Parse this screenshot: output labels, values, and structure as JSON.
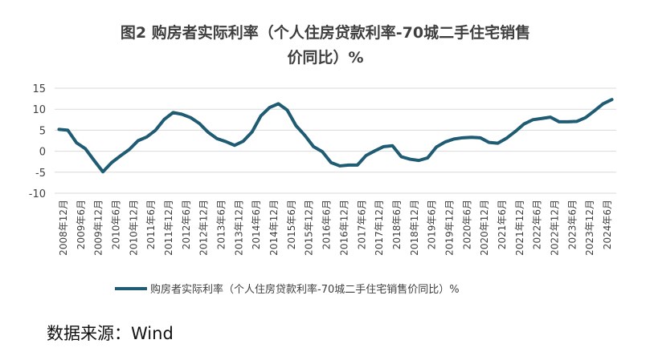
{
  "chart_data": {
    "type": "line",
    "title": "图2  购房者实际利率（个人住房贷款利率-70城二手住宅销售价同比）%",
    "title_lines": [
      "图2  购房者实际利率（个人住房贷款利率-70城二手住宅销售",
      "价同比）%"
    ],
    "xlabel": "",
    "ylabel": "",
    "ylim": [
      -10,
      15
    ],
    "yticks": [
      -10,
      -5,
      0,
      5,
      10,
      15
    ],
    "grid": true,
    "legend": "bottom",
    "line_color": "#1f5b72",
    "x_tick_labels": [
      "2008年12月",
      "2009年6月",
      "2009年12月",
      "2010年6月",
      "2010年12月",
      "2011年6月",
      "2011年12月",
      "2012年6月",
      "2012年12月",
      "2013年6月",
      "2013年12月",
      "2014年6月",
      "2014年12月",
      "2015年6月",
      "2015年12月",
      "2016年6月",
      "2016年12月",
      "2017年6月",
      "2017年12月",
      "2018年6月",
      "2018年12月",
      "2019年6月",
      "2019年12月",
      "2020年6月",
      "2020年12月",
      "2021年6月",
      "2021年12月",
      "2022年6月",
      "2022年12月",
      "2023年6月",
      "2023年12月",
      "2024年6月"
    ],
    "series": [
      {
        "name": "购房者实际利率（个人住房贷款利率-70城二手住宅销售价同比）%",
        "values": [
          5.2,
          5.0,
          2.0,
          0.6,
          -2.2,
          -4.9,
          -2.7,
          -1.1,
          0.4,
          2.5,
          3.4,
          5.0,
          7.6,
          9.2,
          8.8,
          8.0,
          6.6,
          4.5,
          3.0,
          2.3,
          1.4,
          2.4,
          4.6,
          8.4,
          10.4,
          11.3,
          9.8,
          6.1,
          3.8,
          1.1,
          -0.1,
          -2.7,
          -3.5,
          -3.3,
          -3.3,
          -1.0,
          0.1,
          1.1,
          1.3,
          -1.3,
          -1.9,
          -2.2,
          -1.6,
          1.0,
          2.2,
          2.9,
          3.2,
          3.3,
          3.2,
          2.1,
          1.9,
          3.1,
          4.7,
          6.5,
          7.5,
          7.8,
          8.1,
          7.0,
          7.0,
          7.1,
          8.0,
          9.6,
          11.3,
          12.3
        ]
      }
    ]
  },
  "source_note": "数据来源：Wind"
}
